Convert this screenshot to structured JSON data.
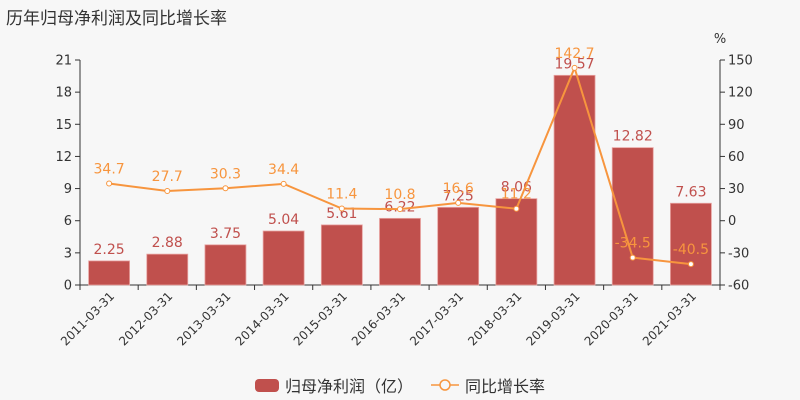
{
  "title": {
    "text": "历年归母净利润及同比增长率"
  },
  "axes": {
    "left_ticks": [
      "0",
      "3",
      "6",
      "9",
      "12",
      "15",
      "18",
      "21"
    ],
    "right_ticks": [
      "-60",
      "-30",
      "0",
      "30",
      "60",
      "90",
      "120",
      "150"
    ],
    "right_unit": "%"
  },
  "legend": {
    "bar_label": "归母净利润（亿）",
    "line_label": "同比增长率"
  },
  "colors": {
    "bar": "#c0504d",
    "line": "#f7953e",
    "axis": "#333333",
    "background": "#f7f7f7"
  },
  "chart_data": {
    "type": "bar",
    "title": "历年归母净利润及同比增长率",
    "categories": [
      "2011-03-31",
      "2012-03-31",
      "2013-03-31",
      "2014-03-31",
      "2015-03-31",
      "2016-03-31",
      "2017-03-31",
      "2018-03-31",
      "2019-03-31",
      "2020-03-31",
      "2021-03-31"
    ],
    "series": [
      {
        "name": "归母净利润（亿）",
        "type": "bar",
        "axis": "left",
        "values": [
          2.25,
          2.88,
          3.75,
          5.04,
          5.61,
          6.22,
          7.25,
          8.06,
          19.57,
          12.82,
          7.63
        ]
      },
      {
        "name": "同比增长率",
        "type": "line",
        "axis": "right",
        "values": [
          34.7,
          27.7,
          30.3,
          34.4,
          11.4,
          10.8,
          16.6,
          11.2,
          142.7,
          -34.5,
          -40.5
        ]
      }
    ],
    "xlabel": "",
    "ylabel": "",
    "ylim": [
      0,
      21
    ],
    "y2label": "%",
    "y2lim": [
      -60,
      150
    ],
    "grid": false,
    "legend_position": "bottom"
  }
}
